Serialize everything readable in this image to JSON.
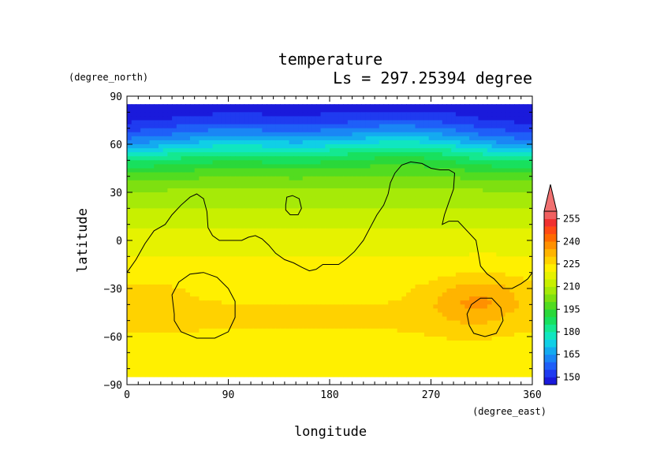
{
  "chart_data": {
    "type": "heatmap",
    "title": "temperature",
    "subtitle": "Ls = 297.25394 degree",
    "xlabel": "longitude",
    "ylabel": "latitude",
    "xunit": "(degree_east)",
    "yunit": "(degree_north)",
    "xlim": [
      0,
      360
    ],
    "ylim": [
      -90,
      90
    ],
    "x_ticks": [
      "0",
      "90",
      "180",
      "270",
      "360"
    ],
    "y_ticks": [
      "90",
      "60",
      "30",
      "0",
      "−30",
      "−60",
      "−90"
    ],
    "colorbar": {
      "levels": [
        145,
        150,
        155,
        160,
        165,
        170,
        175,
        180,
        185,
        190,
        195,
        200,
        205,
        210,
        215,
        220,
        225,
        230,
        235,
        240,
        245,
        250,
        255,
        260
      ],
      "tick_labels": [
        "150",
        "165",
        "180",
        "195",
        "210",
        "225",
        "240",
        "255"
      ],
      "colors": [
        "#1a1adb",
        "#1f3bf0",
        "#1f5ff8",
        "#1a86f5",
        "#14aaf0",
        "#10cfe6",
        "#10e6c0",
        "#14e890",
        "#18e05e",
        "#2ad83a",
        "#52dc20",
        "#7ee010",
        "#a6ea08",
        "#c8f000",
        "#e6f200",
        "#fff000",
        "#ffd200",
        "#ffb400",
        "#ff9000",
        "#ff6a00",
        "#ff4a14",
        "#f03030",
        "#f06060"
      ],
      "under_color": "#0000b0",
      "over_color": "#f07070"
    },
    "zonal_profile": {
      "lat": [
        85,
        80,
        75,
        70,
        65,
        60,
        55,
        50,
        45,
        40,
        35,
        30,
        25,
        20,
        15,
        10,
        5,
        0,
        -5,
        -10,
        -15,
        -20,
        -25,
        -30,
        -35,
        -40,
        -45,
        -50,
        -55,
        -60,
        -65,
        -70,
        -75,
        -80,
        -85
      ],
      "temperature": [
        147,
        149,
        152,
        158,
        164,
        172,
        181,
        188,
        194,
        199,
        203,
        206,
        208,
        210,
        212,
        214,
        216,
        218,
        219,
        220,
        221,
        222,
        223,
        224,
        224,
        225,
        225,
        225,
        225,
        224,
        224,
        223,
        223,
        222,
        222
      ]
    },
    "warm_regions": [
      {
        "lon_center": 315,
        "lat_center": -35,
        "temperature": 233
      },
      {
        "lon_center": 300,
        "lat_center": -45,
        "temperature": 229
      },
      {
        "lon_center": 20,
        "lat_center": -40,
        "temperature": 228
      }
    ],
    "topography_contour": {
      "outline": [
        [
          0,
          -20
        ],
        [
          8,
          -12
        ],
        [
          16,
          -2
        ],
        [
          24,
          6
        ],
        [
          34,
          10
        ],
        [
          40,
          16
        ],
        [
          48,
          22
        ],
        [
          56,
          27
        ],
        [
          62,
          29
        ],
        [
          68,
          26
        ],
        [
          71,
          18
        ],
        [
          72,
          8
        ],
        [
          76,
          3
        ],
        [
          82,
          0
        ],
        [
          92,
          0
        ],
        [
          102,
          0
        ],
        [
          108,
          2
        ],
        [
          114,
          3
        ],
        [
          120,
          1
        ],
        [
          126,
          -3
        ],
        [
          132,
          -8
        ],
        [
          140,
          -12
        ],
        [
          148,
          -14
        ],
        [
          156,
          -17
        ],
        [
          162,
          -19
        ],
        [
          168,
          -18
        ],
        [
          174,
          -15
        ],
        [
          182,
          -15
        ],
        [
          188,
          -15
        ],
        [
          194,
          -12
        ],
        [
          202,
          -7
        ],
        [
          210,
          0
        ],
        [
          216,
          8
        ],
        [
          222,
          16
        ],
        [
          228,
          22
        ],
        [
          232,
          29
        ],
        [
          234,
          36
        ],
        [
          238,
          42
        ],
        [
          244,
          47
        ],
        [
          252,
          49
        ],
        [
          262,
          48
        ],
        [
          270,
          45
        ],
        [
          278,
          44
        ],
        [
          286,
          44
        ],
        [
          291,
          42
        ],
        [
          290,
          32
        ],
        [
          286,
          24
        ],
        [
          282,
          16
        ],
        [
          280,
          10
        ],
        [
          286,
          12
        ],
        [
          294,
          12
        ],
        [
          302,
          6
        ],
        [
          310,
          0
        ],
        [
          312,
          -8
        ],
        [
          314,
          -16
        ],
        [
          320,
          -21
        ],
        [
          326,
          -24
        ],
        [
          334,
          -30
        ],
        [
          342,
          -30
        ],
        [
          350,
          -27
        ],
        [
          356,
          -24
        ],
        [
          360,
          -20
        ]
      ],
      "closed": [
        [
          [
            42,
            -46
          ],
          [
            40,
            -34
          ],
          [
            46,
            -26
          ],
          [
            56,
            -21
          ],
          [
            68,
            -20
          ],
          [
            80,
            -23
          ],
          [
            90,
            -30
          ],
          [
            96,
            -38
          ],
          [
            96,
            -48
          ],
          [
            90,
            -57
          ],
          [
            78,
            -61
          ],
          [
            62,
            -61
          ],
          [
            48,
            -57
          ],
          [
            42,
            -50
          ]
        ],
        [
          [
            304,
            -53
          ],
          [
            302,
            -46
          ],
          [
            306,
            -40
          ],
          [
            314,
            -36
          ],
          [
            324,
            -36
          ],
          [
            332,
            -42
          ],
          [
            334,
            -50
          ],
          [
            328,
            -58
          ],
          [
            318,
            -60
          ],
          [
            308,
            -58
          ]
        ],
        [
          [
            141,
            22
          ],
          [
            142,
            27
          ],
          [
            147,
            28
          ],
          [
            153,
            26
          ],
          [
            155,
            20
          ],
          [
            152,
            16
          ],
          [
            145,
            16
          ],
          [
            141,
            19
          ]
        ]
      ]
    }
  }
}
